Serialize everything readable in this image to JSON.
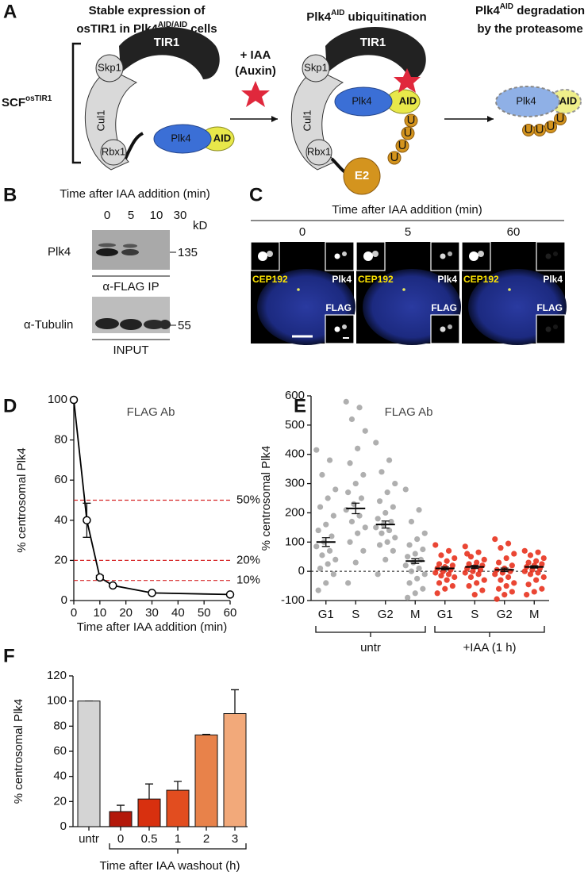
{
  "panel_a": {
    "label": "A",
    "title_1": {
      "line_1": "Stable expression of",
      "line_2": [
        "osTIR1 in Plk4",
        "AID/AID",
        " cells"
      ]
    },
    "title_2": [
      "Plk4",
      "AID",
      " ubiquitination"
    ],
    "title_3": {
      "line_1": [
        "Plk4",
        "AID",
        " degradation"
      ],
      "line_2": "by the proteasome"
    },
    "complex": [
      "SCF",
      "osTIR1"
    ],
    "skp1": "Skp1",
    "tir1": "TIR1",
    "cul1": "Cul1",
    "rbx1": "Rbx1",
    "plk4": "Plk4",
    "aid": "AID",
    "treatment": "+ IAA",
    "treatment_note": "(Auxin)",
    "e2": "E2",
    "ubiquitin": "U"
  },
  "panel_b": {
    "label": "B",
    "title": "Time after IAA addition (min)",
    "lanes": [
      0,
      5,
      10,
      30
    ],
    "unit": "kD",
    "blot_1": {
      "protein": "Plk4",
      "marker": 135,
      "caption": "α-FLAG IP"
    },
    "blot_2": {
      "protein": "α-Tubulin",
      "marker": 55,
      "caption": "INPUT"
    }
  },
  "panel_c": {
    "label": "C",
    "title": "Time after IAA addition (min)",
    "times": [
      0,
      5,
      60
    ],
    "channels": [
      "CEP192",
      "Plk4",
      "FLAG"
    ]
  },
  "chart_data": [
    {
      "panel_label": "D",
      "type": "line",
      "title": "FLAG Ab",
      "x_label": "Time after IAA addition (min)",
      "y_label": "% centrosomal Plk4",
      "x": [
        0,
        5,
        10,
        15,
        30,
        60
      ],
      "values": [
        100,
        40,
        11.5,
        7.5,
        3.8,
        3
      ],
      "errors": [
        0,
        8.5,
        1,
        0.5,
        0.5,
        0.3
      ],
      "color": "#000000",
      "xlim": [
        0,
        60
      ],
      "xticks": [
        0,
        10,
        20,
        30,
        40,
        50,
        60
      ],
      "ylim": [
        0,
        100
      ],
      "yticks": [
        0,
        20,
        40,
        60,
        80,
        100
      ],
      "reference_lines": [
        {
          "value": 50,
          "label": "50%"
        },
        {
          "value": 20,
          "label": "20%"
        },
        {
          "value": 10,
          "label": "10%"
        }
      ],
      "reference_color": "#d62728"
    },
    {
      "panel_label": "E",
      "type": "strip",
      "title": "FLAG Ab",
      "y_label": "% centrosomal Plk4",
      "ylim": [
        -100,
        600
      ],
      "yticks": [
        -100,
        0,
        100,
        200,
        300,
        400,
        500,
        600
      ],
      "zero_line": true,
      "groups": [
        {
          "name": "untr",
          "color": "#a6a6a6",
          "categories": [
            "G1",
            "S",
            "G2",
            "M"
          ],
          "means": [
            100,
            215,
            160,
            35
          ],
          "errors": [
            15,
            18,
            12,
            8
          ],
          "points": [
            [
              415,
              380,
              330,
              280,
              250,
              220,
              190,
              160,
              140,
              120,
              100,
              85,
              70,
              55,
              40,
              25,
              10,
              -10,
              -40,
              -65
            ],
            [
              580,
              560,
              520,
              480,
              420,
              370,
              330,
              300,
              270,
              250,
              230,
              210,
              190,
              170,
              150,
              130,
              100,
              70,
              30,
              -40
            ],
            [
              440,
              380,
              340,
              300,
              270,
              240,
              220,
              200,
              180,
              170,
              160,
              150,
              140,
              130,
              115,
              100,
              90,
              70,
              40,
              -10
            ],
            [
              280,
              210,
              170,
              130,
              110,
              90,
              75,
              60,
              50,
              40,
              30,
              20,
              10,
              0,
              -10,
              -25,
              -40,
              -60,
              -75,
              -90
            ]
          ]
        },
        {
          "name": "+IAA (1 h)",
          "color": "#e8321e",
          "categories": [
            "G1",
            "S",
            "G2",
            "M"
          ],
          "means": [
            10,
            15,
            5,
            15
          ],
          "errors": [
            5,
            5,
            6,
            4
          ],
          "points": [
            [
              90,
              70,
              55,
              45,
              35,
              25,
              20,
              15,
              10,
              5,
              0,
              -5,
              -10,
              -15,
              -20,
              -30,
              -40,
              -50,
              -60,
              -75
            ],
            [
              85,
              65,
              50,
              40,
              30,
              25,
              20,
              15,
              10,
              5,
              0,
              -5,
              -10,
              -20,
              -30,
              -40,
              -50,
              -65,
              -80,
              60
            ],
            [
              110,
              95,
              80,
              60,
              45,
              30,
              20,
              10,
              5,
              0,
              -5,
              -10,
              -20,
              -30,
              -40,
              -50,
              -60,
              -70,
              -80,
              -95
            ],
            [
              70,
              65,
              55,
              45,
              35,
              30,
              25,
              20,
              15,
              10,
              5,
              0,
              -5,
              -10,
              -20,
              -30,
              -45,
              -60,
              -70,
              -80
            ]
          ]
        }
      ]
    },
    {
      "panel_label": "F",
      "type": "bar",
      "x_label": "Time after IAA washout (h)",
      "y_label": "% centrosomal Plk4",
      "categories": [
        "untr",
        "0",
        "0.5",
        "1",
        "2",
        "3"
      ],
      "values": [
        100,
        12,
        22,
        29,
        73,
        90
      ],
      "errors": [
        0,
        5,
        12,
        7,
        0.5,
        19
      ],
      "colors": [
        "#d4d4d4",
        "#b3180a",
        "#d8300f",
        "#e24d1f",
        "#e8824a",
        "#f2a97a"
      ],
      "ylim": [
        0,
        120
      ],
      "yticks": [
        0,
        20,
        40,
        60,
        80,
        100,
        120
      ]
    }
  ]
}
